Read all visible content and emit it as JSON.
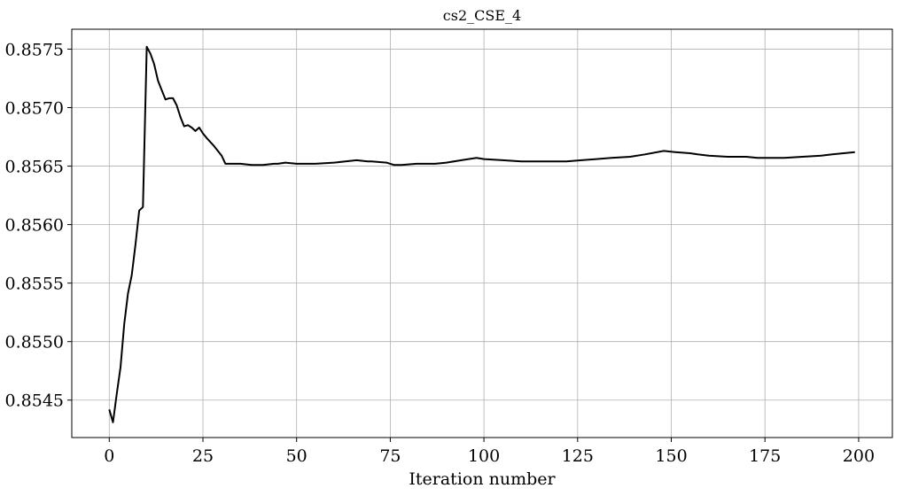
{
  "chart_data": {
    "type": "line",
    "title": "cs2_CSE_4",
    "xlabel": "Iteration number",
    "ylabel": "",
    "xlim": [
      -10,
      209
    ],
    "ylim": [
      0.85418,
      0.85767
    ],
    "grid": true,
    "xticks": [
      0,
      25,
      50,
      75,
      100,
      125,
      150,
      175,
      200
    ],
    "yticks": [
      0.8545,
      0.855,
      0.8555,
      0.856,
      0.8565,
      0.857,
      0.8575
    ],
    "ytick_labels": [
      "0.8545",
      "0.8550",
      "0.8555",
      "0.8560",
      "0.8565",
      "0.8570",
      "0.8575"
    ],
    "series": [
      {
        "color": "#000000",
        "x": [
          0,
          1,
          2,
          3,
          4,
          5,
          6,
          7,
          8,
          9,
          10,
          11,
          12,
          13,
          14,
          15,
          16,
          17,
          18,
          19,
          20,
          21,
          22,
          23,
          24,
          25,
          26,
          28,
          30,
          31,
          33,
          35,
          38,
          41,
          44,
          45,
          47,
          50,
          55,
          60,
          63,
          66,
          69,
          70,
          74,
          75,
          76,
          78,
          82,
          85,
          87,
          90,
          94,
          98,
          100,
          105,
          110,
          112,
          117,
          122,
          126,
          130,
          134,
          139,
          143,
          148,
          151,
          155,
          157,
          160,
          165,
          170,
          173,
          175,
          180,
          185,
          190,
          193,
          196,
          199
        ],
        "y": [
          0.85442,
          0.85431,
          0.85455,
          0.85478,
          0.85515,
          0.85541,
          0.85557,
          0.85583,
          0.85612,
          0.85615,
          0.85752,
          0.85746,
          0.85737,
          0.85723,
          0.85715,
          0.85707,
          0.85708,
          0.85708,
          0.85702,
          0.85692,
          0.85684,
          0.85685,
          0.85683,
          0.8568,
          0.85683,
          0.85678,
          0.85674,
          0.85667,
          0.85659,
          0.85652,
          0.85652,
          0.85652,
          0.85651,
          0.85651,
          0.85652,
          0.85652,
          0.85653,
          0.85652,
          0.85652,
          0.85653,
          0.85654,
          0.85655,
          0.85654,
          0.85654,
          0.85653,
          0.85652,
          0.85651,
          0.85651,
          0.85652,
          0.85652,
          0.85652,
          0.85653,
          0.85655,
          0.85657,
          0.85656,
          0.85655,
          0.85654,
          0.85654,
          0.85654,
          0.85654,
          0.85655,
          0.85656,
          0.85657,
          0.85658,
          0.8566,
          0.85663,
          0.85662,
          0.85661,
          0.8566,
          0.85659,
          0.85658,
          0.85658,
          0.85657,
          0.85657,
          0.85657,
          0.85658,
          0.85659,
          0.8566,
          0.85661,
          0.85662
        ]
      }
    ]
  }
}
